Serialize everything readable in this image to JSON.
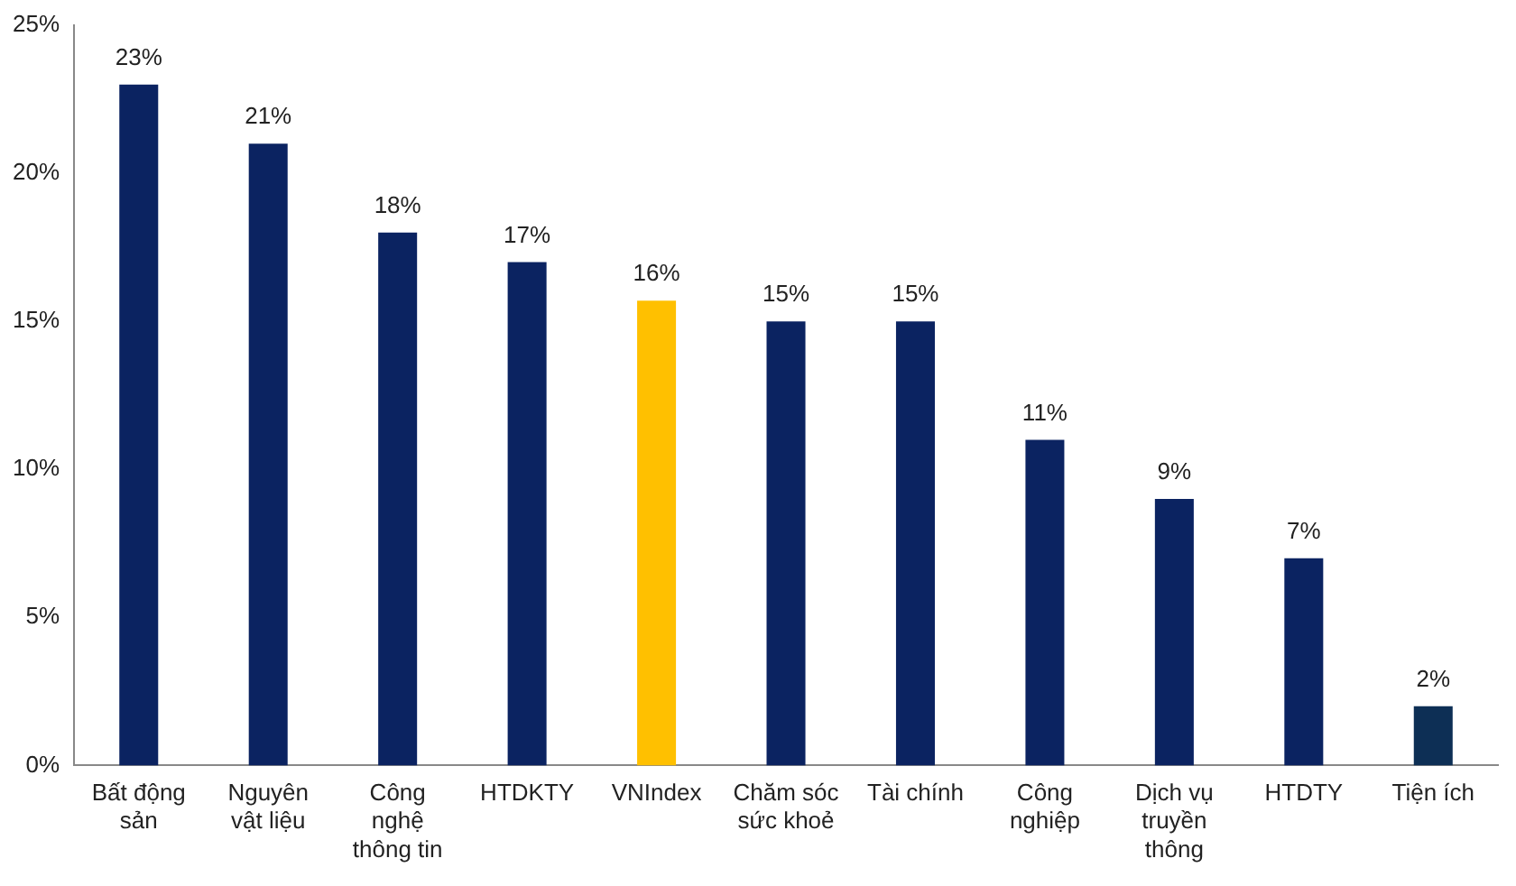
{
  "chart_data": {
    "type": "bar",
    "categories": [
      "Bất động sản",
      "Nguyên vật liệu",
      "Công nghệ thông tin",
      "HTDKTY",
      "VNIndex",
      "Chăm sóc sức khoẻ",
      "Tài chính",
      "Công nghiệp",
      "Dịch vụ truyền thông",
      "HTDTY",
      "Tiện ích"
    ],
    "values": [
      23,
      21,
      18,
      17,
      15.7,
      15,
      15,
      11,
      9,
      7,
      2
    ],
    "value_labels": [
      "23%",
      "21%",
      "18%",
      "17%",
      "16%",
      "15%",
      "15%",
      "11%",
      "9%",
      "7%",
      "2%"
    ],
    "colors": [
      "#0b2361",
      "#0b2361",
      "#0b2361",
      "#0b2361",
      "#ffc000",
      "#0b2361",
      "#0b2361",
      "#0b2361",
      "#0b2361",
      "#0b2361",
      "#0d2f55"
    ],
    "ylim": [
      0,
      25
    ],
    "yticks": [
      {
        "value": 0,
        "label": "0%"
      },
      {
        "value": 5,
        "label": "5%"
      },
      {
        "value": 10,
        "label": "10%"
      },
      {
        "value": 15,
        "label": "15%"
      },
      {
        "value": 20,
        "label": "20%"
      },
      {
        "value": 25,
        "label": "25%"
      }
    ],
    "grid": false,
    "legend": false
  }
}
